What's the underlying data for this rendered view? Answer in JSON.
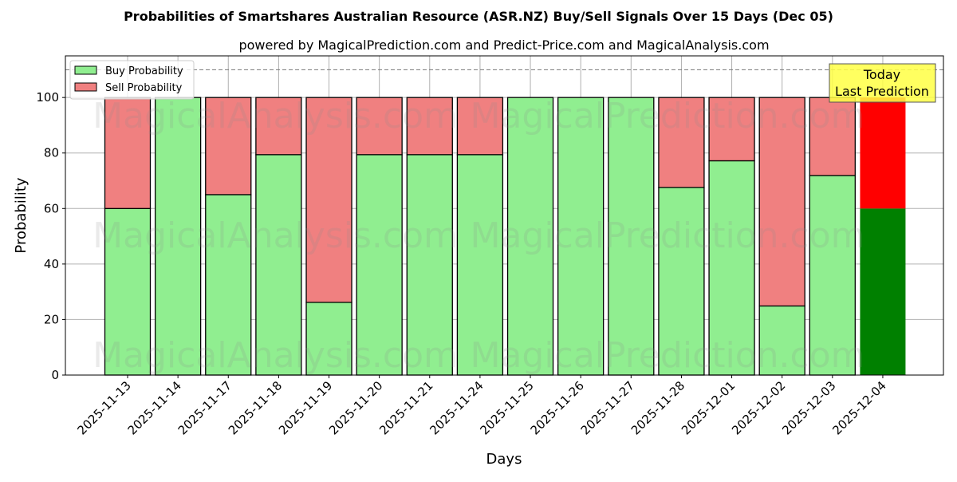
{
  "chart_data": {
    "type": "bar",
    "stacked": true,
    "title": "Probabilities of Smartshares Australian Resource (ASR.NZ) Buy/Sell Signals Over 15 Days (Dec 05)",
    "subtitle": "powered by MagicalPrediction.com and Predict-Price.com and MagicalAnalysis.com",
    "xlabel": "Days",
    "ylabel": "Probability",
    "ylim": [
      0,
      115
    ],
    "yticks": [
      0,
      20,
      40,
      60,
      80,
      100
    ],
    "reference_line": 110,
    "grid": true,
    "legend_placement": "top-left",
    "categories": [
      "2025-11-13",
      "2025-11-14",
      "2025-11-17",
      "2025-11-18",
      "2025-11-19",
      "2025-11-20",
      "2025-11-21",
      "2025-11-24",
      "2025-11-25",
      "2025-11-26",
      "2025-11-27",
      "2025-11-28",
      "2025-12-01",
      "2025-12-02",
      "2025-12-03",
      "2025-12-04"
    ],
    "series": [
      {
        "name": "Buy Probability",
        "color": "#90ee90",
        "today_color": "#008000",
        "values": [
          60,
          100,
          65,
          79.4,
          26.2,
          79.4,
          79.4,
          79.4,
          100,
          100,
          100,
          67.6,
          77.2,
          24.9,
          71.9,
          60
        ]
      },
      {
        "name": "Sell Probability",
        "color": "#f08080",
        "today_color": "#ff0000",
        "values": [
          40,
          0,
          35,
          20.6,
          73.8,
          20.6,
          20.6,
          20.6,
          0,
          0,
          0,
          32.4,
          22.8,
          75.1,
          28.1,
          40
        ]
      }
    ],
    "annotation": {
      "line1": "Today",
      "line2": "Last Prediction",
      "color": "#ffff44"
    },
    "watermarks": [
      "MagicalAnalysis.com",
      "MagicalPrediction.com"
    ]
  }
}
